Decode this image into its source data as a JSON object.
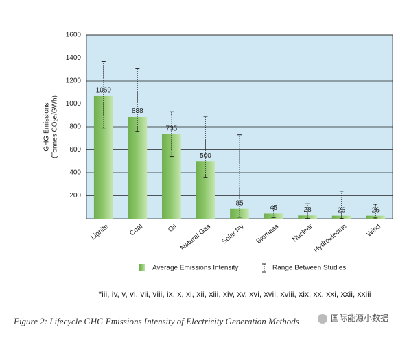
{
  "chart_data": {
    "type": "bar",
    "y_label": [
      "GHG Emissions",
      "(Tonnes CO₂e/GWh)"
    ],
    "categories": [
      "Lignite",
      "Coal",
      "Oil",
      "Natural Gas",
      "Solar PV",
      "Biomass",
      "Nuclear",
      "Hydroelectric",
      "Wind"
    ],
    "series": [
      {
        "name": "Average Emissions Intensity",
        "color": "#8cc66a",
        "values": [
          1069,
          888,
          735,
          500,
          85,
          45,
          28,
          26,
          26
        ]
      }
    ],
    "range_name": "Range Between Studies",
    "range_low": [
      790,
      760,
      540,
      360,
      13,
      10,
      2,
      2,
      6
    ],
    "range_high": [
      1370,
      1310,
      930,
      890,
      730,
      110,
      130,
      240,
      125
    ],
    "ylim": [
      0,
      1600
    ],
    "yticks": [
      200,
      400,
      600,
      800,
      1000,
      1200,
      1400,
      1600
    ],
    "grid": true,
    "plot_background": "#cfe8f4",
    "footnote": "*iii, iv, v, vi, vii, viii, ix, x, xi, xii, xiii, xiv, xv, xvi, xvii, xviii, xix, xx, xxi, xxii, xxiii",
    "caption": "Figure 2: Lifecycle GHG Emissions Intensity of Electricity Generation Methods",
    "watermark": "国际能源小数据"
  }
}
